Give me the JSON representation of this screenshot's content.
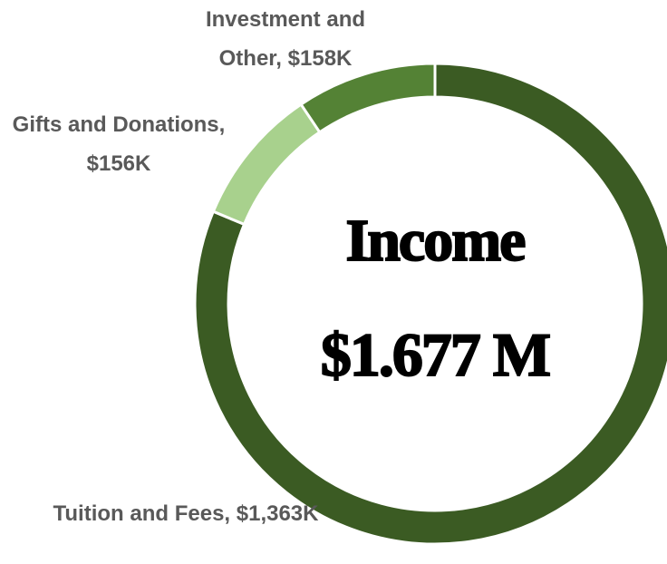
{
  "chart_data": {
    "type": "donut",
    "title": "Income",
    "subtitle": "$1.677 M",
    "values": [
      1363,
      156,
      158
    ],
    "value_labels": [
      "Tuition and Fees, $1,363K",
      "Gifts and Donations, $156K",
      "Investment and Other, $158K"
    ],
    "colors": [
      "#3b5b23",
      "#a8d18d",
      "#548235"
    ]
  }
}
